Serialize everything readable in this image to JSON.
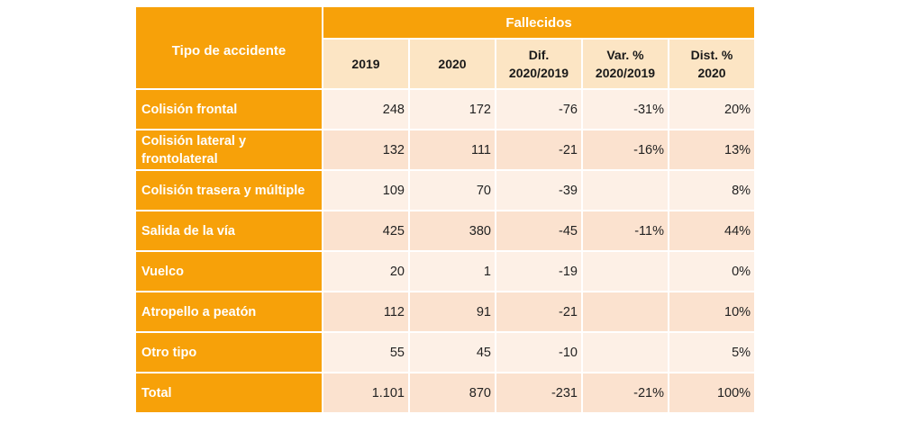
{
  "chart_data": {
    "type": "table",
    "group_header": "Fallecidos",
    "row_header_title": "Tipo de accidente",
    "columns": [
      "2019",
      "2020",
      "Dif. 2020/2019",
      "Var. % 2020/2019",
      "Dist. % 2020"
    ],
    "rows": [
      {
        "label": "Colisión frontal",
        "values": [
          "248",
          "172",
          "-76",
          "-31%",
          "20%"
        ]
      },
      {
        "label": "Colisión lateral y frontolateral",
        "values": [
          "132",
          "111",
          "-21",
          "-16%",
          "13%"
        ]
      },
      {
        "label": "Colisión trasera y múltiple",
        "values": [
          "109",
          "70",
          "-39",
          "",
          "8%"
        ]
      },
      {
        "label": "Salida de la vía",
        "values": [
          "425",
          "380",
          "-45",
          "-11%",
          "44%"
        ]
      },
      {
        "label": "Vuelco",
        "values": [
          "20",
          "1",
          "-19",
          "",
          "0%"
        ]
      },
      {
        "label": "Atropello a peatón",
        "values": [
          "112",
          "91",
          "-21",
          "",
          "10%"
        ]
      },
      {
        "label": "Otro tipo",
        "values": [
          "55",
          "45",
          "-10",
          "",
          "5%"
        ]
      },
      {
        "label": "Total",
        "values": [
          "1.101",
          "870",
          "-231",
          "-21%",
          "100%"
        ]
      }
    ],
    "colors": {
      "header": "#f7a109",
      "subheader": "#fce5c4",
      "row_light": "#fdf0e6",
      "row_dark": "#fbe2cf"
    }
  }
}
